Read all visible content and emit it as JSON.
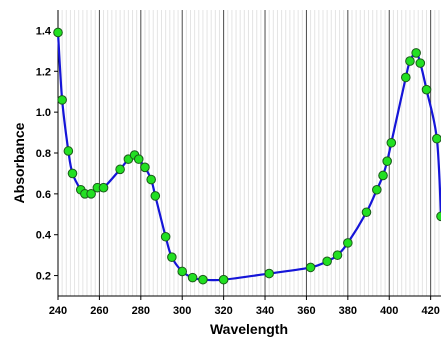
{
  "chart_data": {
    "type": "line",
    "title": "",
    "xlabel": "Wavelength",
    "ylabel": "Absorbance",
    "xlim": [
      240,
      425
    ],
    "ylim": [
      0.1,
      1.5
    ],
    "xticks": [
      240,
      260,
      280,
      300,
      320,
      340,
      360,
      380,
      400,
      420
    ],
    "yticks": [
      0.2,
      0.4,
      0.6,
      0.8,
      1.0,
      1.2,
      1.4
    ],
    "xtick_labels": [
      "240",
      "260",
      "280",
      "300",
      "320",
      "340",
      "360",
      "380",
      "400",
      "420"
    ],
    "ytick_labels": [
      "0.2",
      "0.4",
      "0.6",
      "0.8",
      "1.0",
      "1.2",
      "1.4"
    ],
    "grid": {
      "major_vertical": true,
      "minor_vertical": true,
      "horizontal": false
    },
    "line_color": "#1515d8",
    "marker_fill": "#22e022",
    "marker_stroke": "#1a5a1a",
    "series": [
      {
        "x": [
          240,
          242,
          245,
          247,
          251,
          253,
          256,
          259,
          262,
          270,
          274,
          277,
          279,
          282,
          285,
          287,
          292,
          295,
          300,
          305,
          310,
          320,
          342,
          362,
          370,
          375,
          380,
          389,
          394,
          397,
          399,
          401,
          408,
          410,
          413,
          415,
          418,
          423,
          425
        ],
        "y": [
          1.39,
          1.06,
          0.81,
          0.7,
          0.62,
          0.6,
          0.6,
          0.63,
          0.63,
          0.72,
          0.77,
          0.79,
          0.77,
          0.73,
          0.67,
          0.59,
          0.39,
          0.29,
          0.22,
          0.19,
          0.18,
          0.18,
          0.21,
          0.24,
          0.27,
          0.3,
          0.36,
          0.51,
          0.62,
          0.69,
          0.76,
          0.85,
          1.17,
          1.25,
          1.29,
          1.24,
          1.11,
          0.87,
          0.49
        ]
      }
    ]
  }
}
